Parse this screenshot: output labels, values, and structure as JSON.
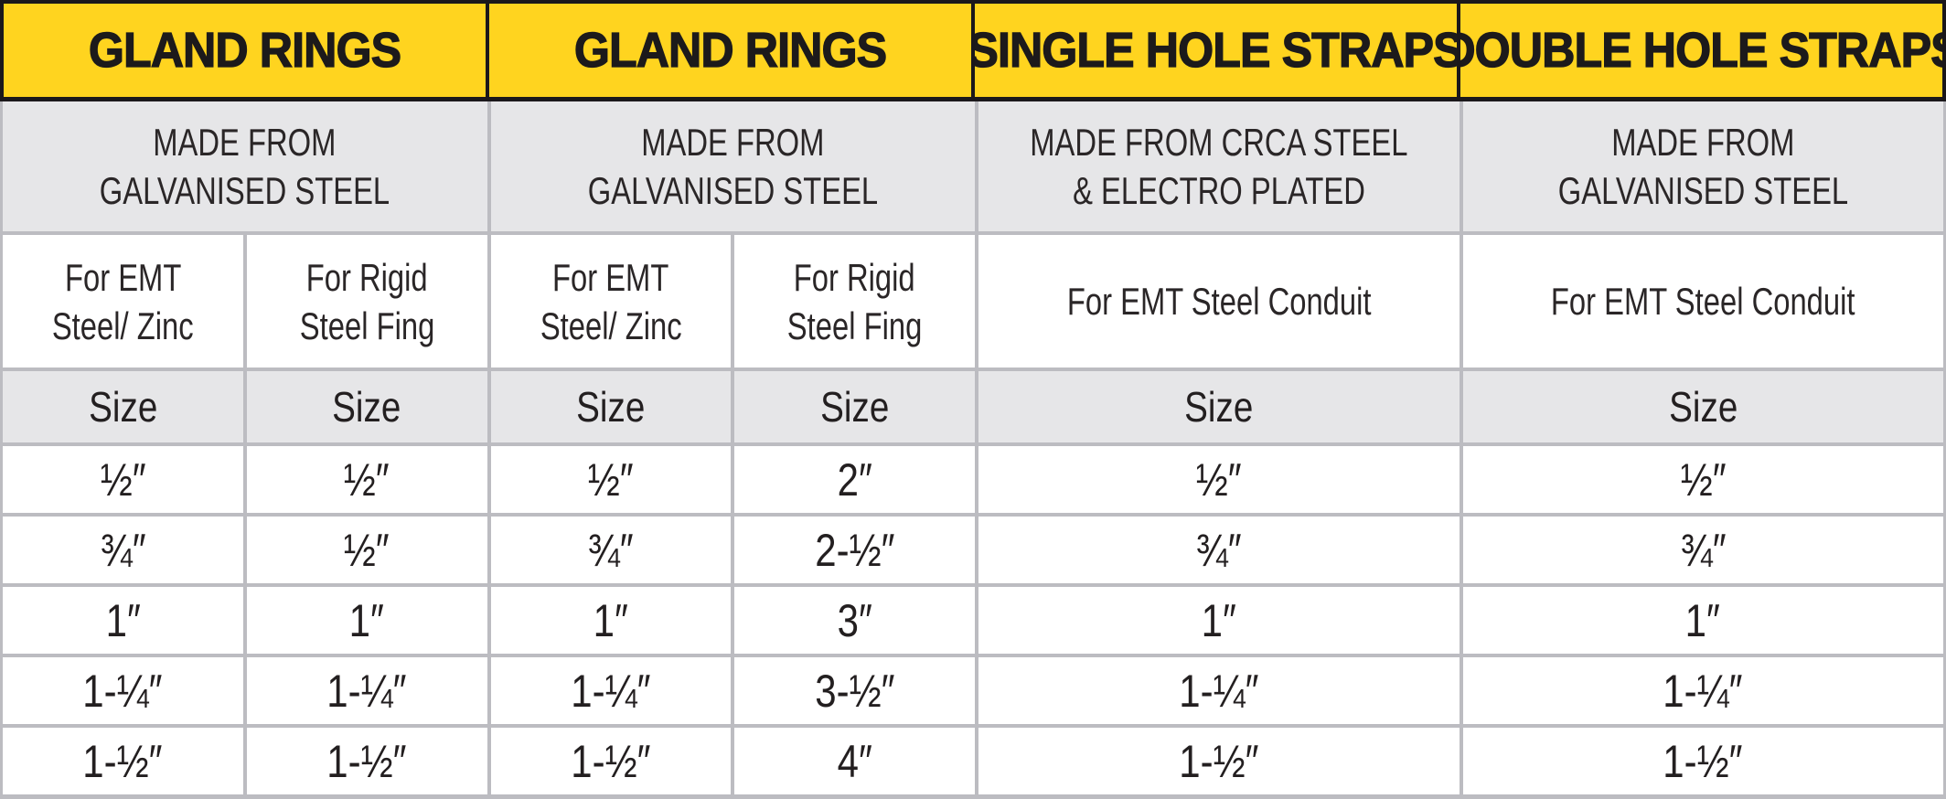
{
  "colors": {
    "header_bg": "#FFD41F",
    "header_text": "#1C1A1B",
    "frame_black": "#1B181B",
    "band_bg": "#E6E6E8",
    "grid_line": "#BCBCC1",
    "cell_bg": "#FFFFFF",
    "body_text": "#231F20"
  },
  "header": {
    "columns": [
      {
        "title": "GLAND RINGS"
      },
      {
        "title": "GLAND RINGS"
      },
      {
        "title": "SINGLE HOLE STRAPS"
      },
      {
        "title": "DOUBLE HOLE STRAPS"
      }
    ]
  },
  "materials": [
    {
      "line1": "MADE FROM",
      "line2": "GALVANISED STEEL"
    },
    {
      "line1": "MADE FROM",
      "line2": "GALVANISED STEEL"
    },
    {
      "line1": "MADE FROM CRCA STEEL",
      "line2": "& ELECTRO PLATED"
    },
    {
      "line1": "MADE FROM",
      "line2": "GALVANISED STEEL"
    }
  ],
  "subheaders": [
    {
      "line1": "For EMT",
      "line2": "Steel/ Zinc"
    },
    {
      "line1": "For Rigid",
      "line2": "Steel Fing"
    },
    {
      "line1": "For EMT",
      "line2": "Steel/ Zinc"
    },
    {
      "line1": "For Rigid",
      "line2": "Steel Fing"
    },
    {
      "line1": "For EMT Steel Conduit"
    },
    {
      "line1": "For EMT Steel Conduit"
    }
  ],
  "size_label": "Size",
  "size_rows": [
    [
      "½″",
      "½″",
      "½″",
      "2″",
      "½″",
      "½″"
    ],
    [
      "¾″",
      "½″",
      "¾″",
      "2-½″",
      "¾″",
      "¾″"
    ],
    [
      "1″",
      "1″",
      "1″",
      "3″",
      "1″",
      "1″"
    ],
    [
      "1-¼″",
      "1-¼″",
      "1-¼″",
      "3-½″",
      "1-¼″",
      "1-¼″"
    ],
    [
      "1-½″",
      "1-½″",
      "1-½″",
      "4″",
      "1-½″",
      "1-½″"
    ]
  ]
}
